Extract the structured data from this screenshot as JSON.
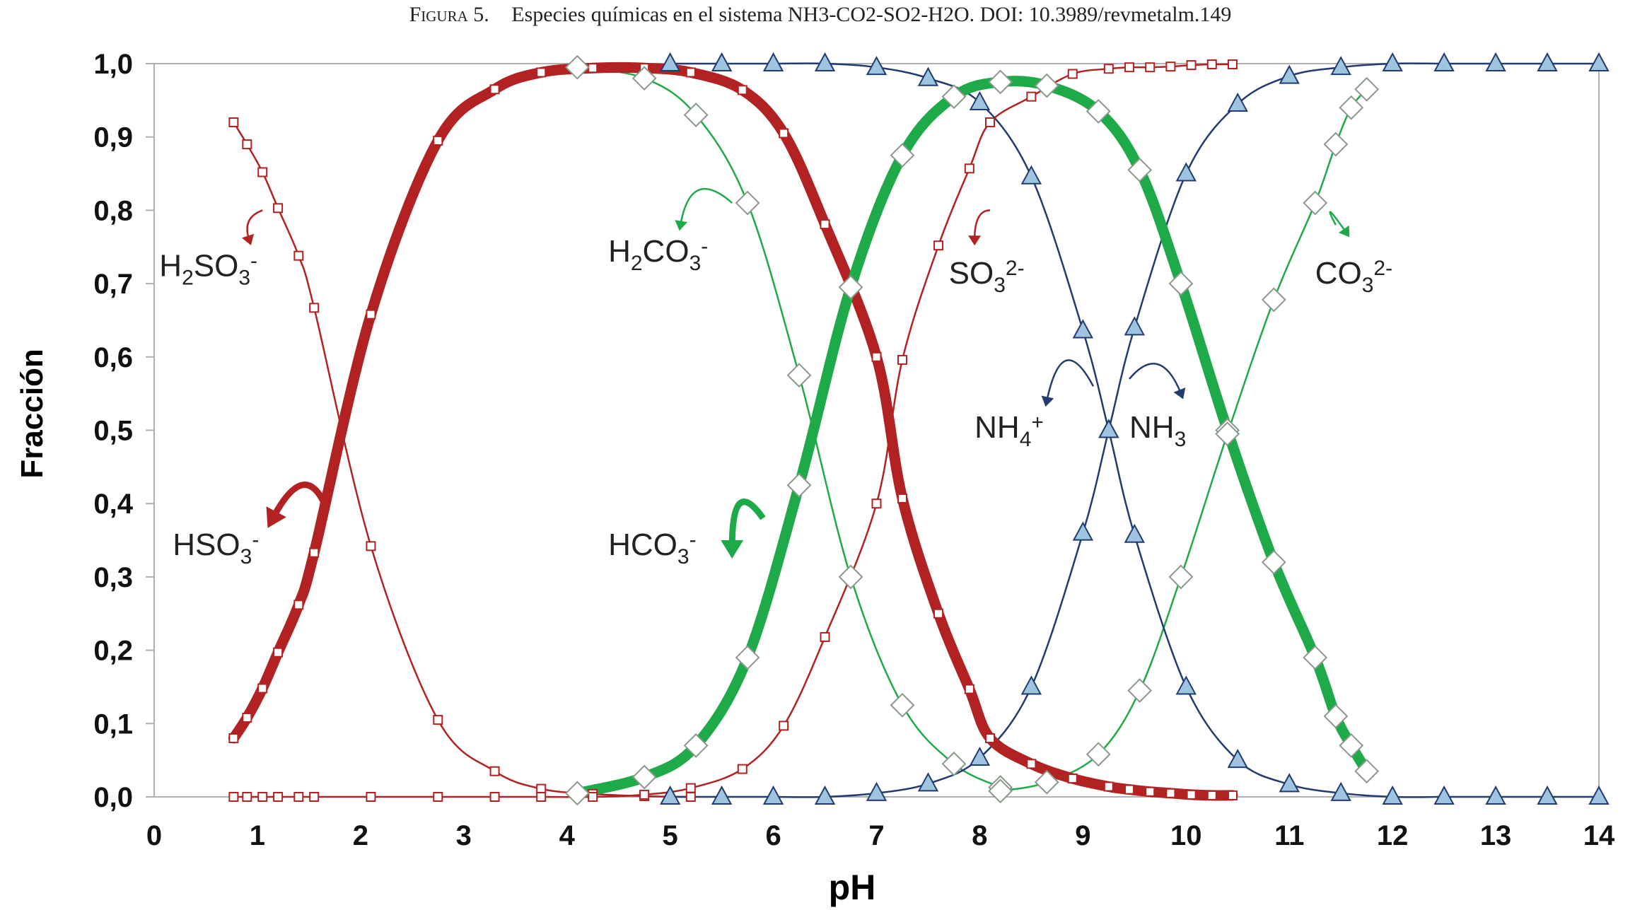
{
  "caption": {
    "prefix": "Figura 5.",
    "text": "Especies químicas en el sistema NH3-CO2-SO2-H2O. DOI: 10.3989/revmetalm.149"
  },
  "chart_data": {
    "type": "line",
    "xlabel": "pH",
    "ylabel": "Fracción",
    "xlim": [
      0,
      14
    ],
    "ylim": [
      0,
      1
    ],
    "xticks": [
      0,
      1,
      2,
      3,
      4,
      5,
      6,
      7,
      8,
      9,
      10,
      11,
      12,
      13,
      14
    ],
    "xtick_labels": [
      "0",
      "1",
      "2",
      "3",
      "4",
      "5",
      "6",
      "7",
      "8",
      "9",
      "10",
      "11",
      "12",
      "13",
      "14"
    ],
    "yticks": [
      0,
      0.1,
      0.2,
      0.3,
      0.4,
      0.5,
      0.6,
      0.7,
      0.8,
      0.9,
      1.0
    ],
    "ytick_labels": [
      "0,0",
      "0,1",
      "0,2",
      "0,3",
      "0,4",
      "0,5",
      "0,6",
      "0,7",
      "0,8",
      "0,9",
      "1,0"
    ],
    "grid": false,
    "colors": {
      "sulfite": "#b22222",
      "carbonate": "#1faa4a",
      "ammonia": "#233b6e",
      "triangle_fill": "#9ec4df"
    },
    "series": [
      {
        "name": "H2SO3",
        "color": "#b22222",
        "width": "thin",
        "marker": "square",
        "x": [
          0.77,
          0.9,
          1.05,
          1.2,
          1.4,
          1.55,
          2.1,
          2.75,
          3.3,
          3.75,
          4.25,
          4.75,
          5.2
        ],
        "y": [
          0.92,
          0.89,
          0.852,
          0.803,
          0.738,
          0.667,
          0.342,
          0.105,
          0.035,
          0.011,
          0.004,
          0.001,
          0.0
        ]
      },
      {
        "name": "HSO3",
        "color": "#b22222",
        "width": "thick",
        "marker": "square",
        "x": [
          0.77,
          0.9,
          1.05,
          1.2,
          1.4,
          1.55,
          2.1,
          2.75,
          3.3,
          3.75,
          4.25,
          4.75,
          5.2,
          5.7,
          6.1,
          6.5,
          7.0,
          7.25,
          7.6,
          7.9,
          8.1,
          8.5,
          8.9,
          9.25,
          9.45,
          9.65,
          9.85,
          10.05,
          10.25,
          10.45
        ],
        "y": [
          0.08,
          0.108,
          0.148,
          0.197,
          0.262,
          0.333,
          0.658,
          0.895,
          0.965,
          0.988,
          0.994,
          0.994,
          0.988,
          0.964,
          0.905,
          0.781,
          0.6,
          0.407,
          0.25,
          0.147,
          0.08,
          0.045,
          0.025,
          0.014,
          0.01,
          0.007,
          0.005,
          0.003,
          0.002,
          0.002
        ]
      },
      {
        "name": "SO3 2-",
        "color": "#b22222",
        "width": "thin",
        "marker": "square",
        "x": [
          0.77,
          0.9,
          1.05,
          1.2,
          1.4,
          1.55,
          2.1,
          2.75,
          3.3,
          3.75,
          4.25,
          4.75,
          5.2,
          5.7,
          6.1,
          6.5,
          7.0,
          7.25,
          7.6,
          7.9,
          8.1,
          8.5,
          8.9,
          9.25,
          9.45,
          9.65,
          9.85,
          10.05,
          10.25,
          10.45
        ],
        "y": [
          0.0,
          0.0,
          0.0,
          0.0,
          0.0,
          0.0,
          0.0,
          0.0,
          0.0,
          0.0,
          0.0,
          0.003,
          0.012,
          0.038,
          0.097,
          0.218,
          0.4,
          0.596,
          0.752,
          0.857,
          0.92,
          0.955,
          0.986,
          0.993,
          0.995,
          0.995,
          0.996,
          0.998,
          0.999,
          0.999
        ]
      },
      {
        "name": "H2CO3",
        "color": "#1faa4a",
        "width": "thin",
        "marker": "diamond",
        "x": [
          4.1,
          4.75,
          5.25,
          5.75,
          6.25,
          6.75,
          7.25,
          7.75,
          8.2
        ],
        "y": [
          0.995,
          0.98,
          0.93,
          0.81,
          0.575,
          0.3,
          0.125,
          0.045,
          0.013
        ]
      },
      {
        "name": "HCO3",
        "color": "#1faa4a",
        "width": "thick",
        "marker": "diamond",
        "x": [
          4.1,
          4.75,
          5.25,
          5.75,
          6.25,
          6.75,
          7.25,
          7.75,
          8.2,
          8.65,
          9.15,
          9.55,
          9.95,
          10.4,
          10.85,
          11.25,
          11.45,
          11.6,
          11.75
        ],
        "y": [
          0.005,
          0.027,
          0.07,
          0.19,
          0.425,
          0.695,
          0.875,
          0.955,
          0.975,
          0.97,
          0.935,
          0.855,
          0.7,
          0.5,
          0.32,
          0.19,
          0.11,
          0.07,
          0.035
        ]
      },
      {
        "name": "CO3 2-",
        "color": "#1faa4a",
        "width": "thin",
        "marker": "diamond",
        "x": [
          8.2,
          8.65,
          9.15,
          9.55,
          9.95,
          10.4,
          10.85,
          11.25,
          11.45,
          11.6,
          11.75
        ],
        "y": [
          0.008,
          0.02,
          0.058,
          0.145,
          0.3,
          0.495,
          0.678,
          0.81,
          0.89,
          0.94,
          0.965
        ]
      },
      {
        "name": "NH4+",
        "color": "#233b6e",
        "width": "thin",
        "marker": "triangle",
        "x": [
          5.0,
          5.5,
          6.0,
          6.5,
          7.0,
          7.5,
          8.0,
          8.5,
          9.0,
          9.25,
          9.5,
          10.0,
          10.5,
          11.0,
          11.5,
          12.0,
          12.5,
          13.0,
          13.5,
          14.0
        ],
        "y": [
          1.0,
          1.0,
          1.0,
          1.0,
          0.995,
          0.98,
          0.947,
          0.846,
          0.636,
          0.5,
          0.357,
          0.15,
          0.05,
          0.017,
          0.005,
          0.0,
          0.0,
          0.0,
          0.0,
          0.0
        ]
      },
      {
        "name": "NH3",
        "color": "#233b6e",
        "width": "thin",
        "marker": "triangle",
        "x": [
          5.0,
          5.5,
          6.0,
          6.5,
          7.0,
          7.5,
          8.0,
          8.5,
          9.0,
          9.25,
          9.5,
          10.0,
          10.5,
          11.0,
          11.5,
          12.0,
          12.5,
          13.0,
          13.5,
          14.0
        ],
        "y": [
          0.0,
          0.0,
          0.0,
          0.0,
          0.005,
          0.018,
          0.053,
          0.15,
          0.36,
          0.5,
          0.64,
          0.85,
          0.945,
          0.983,
          0.995,
          1.0,
          1.0,
          1.0,
          1.0,
          1.0
        ]
      }
    ],
    "annotations": [
      {
        "text": "H2SO3-",
        "pos": [
          0.05,
          0.71
        ],
        "color": "#b22222",
        "arrow": [
          [
            1.05,
            0.8
          ],
          [
            0.85,
            0.79
          ],
          [
            0.92,
            0.76
          ]
        ]
      },
      {
        "text": "HSO3-",
        "pos": [
          0.18,
          0.33
        ],
        "color": "#b22222",
        "thick": true,
        "arrow": [
          [
            1.65,
            0.4
          ],
          [
            1.45,
            0.46
          ],
          [
            1.15,
            0.38
          ]
        ]
      },
      {
        "text": "H2CO3-",
        "pos": [
          4.4,
          0.73
        ],
        "color": "#1faa4a",
        "arrow": [
          [
            5.6,
            0.81
          ],
          [
            5.2,
            0.86
          ],
          [
            5.1,
            0.78
          ]
        ]
      },
      {
        "text": "HCO3-",
        "pos": [
          4.4,
          0.33
        ],
        "color": "#1faa4a",
        "thick": true,
        "arrow": [
          [
            5.9,
            0.38
          ],
          [
            5.6,
            0.44
          ],
          [
            5.6,
            0.34
          ]
        ]
      },
      {
        "text": "SO32-",
        "pos": [
          7.7,
          0.7
        ],
        "color": "#b22222",
        "arrow": [
          [
            8.1,
            0.8
          ],
          [
            7.95,
            0.8
          ],
          [
            7.95,
            0.76
          ]
        ]
      },
      {
        "text": "NH4+",
        "pos": [
          7.95,
          0.49
        ],
        "color": "#233b6e",
        "arrow": [
          [
            9.1,
            0.56
          ],
          [
            8.8,
            0.64
          ],
          [
            8.65,
            0.54
          ]
        ]
      },
      {
        "text": "NH3",
        "pos": [
          9.45,
          0.49
        ],
        "color": "#233b6e",
        "arrow": [
          [
            9.45,
            0.57
          ],
          [
            9.75,
            0.62
          ],
          [
            9.95,
            0.55
          ]
        ]
      },
      {
        "text": "CO32-",
        "pos": [
          11.25,
          0.7
        ],
        "color": "#1faa4a",
        "arrow": [
          [
            11.45,
            0.78
          ],
          [
            11.3,
            0.82
          ],
          [
            11.55,
            0.77
          ]
        ]
      }
    ]
  }
}
